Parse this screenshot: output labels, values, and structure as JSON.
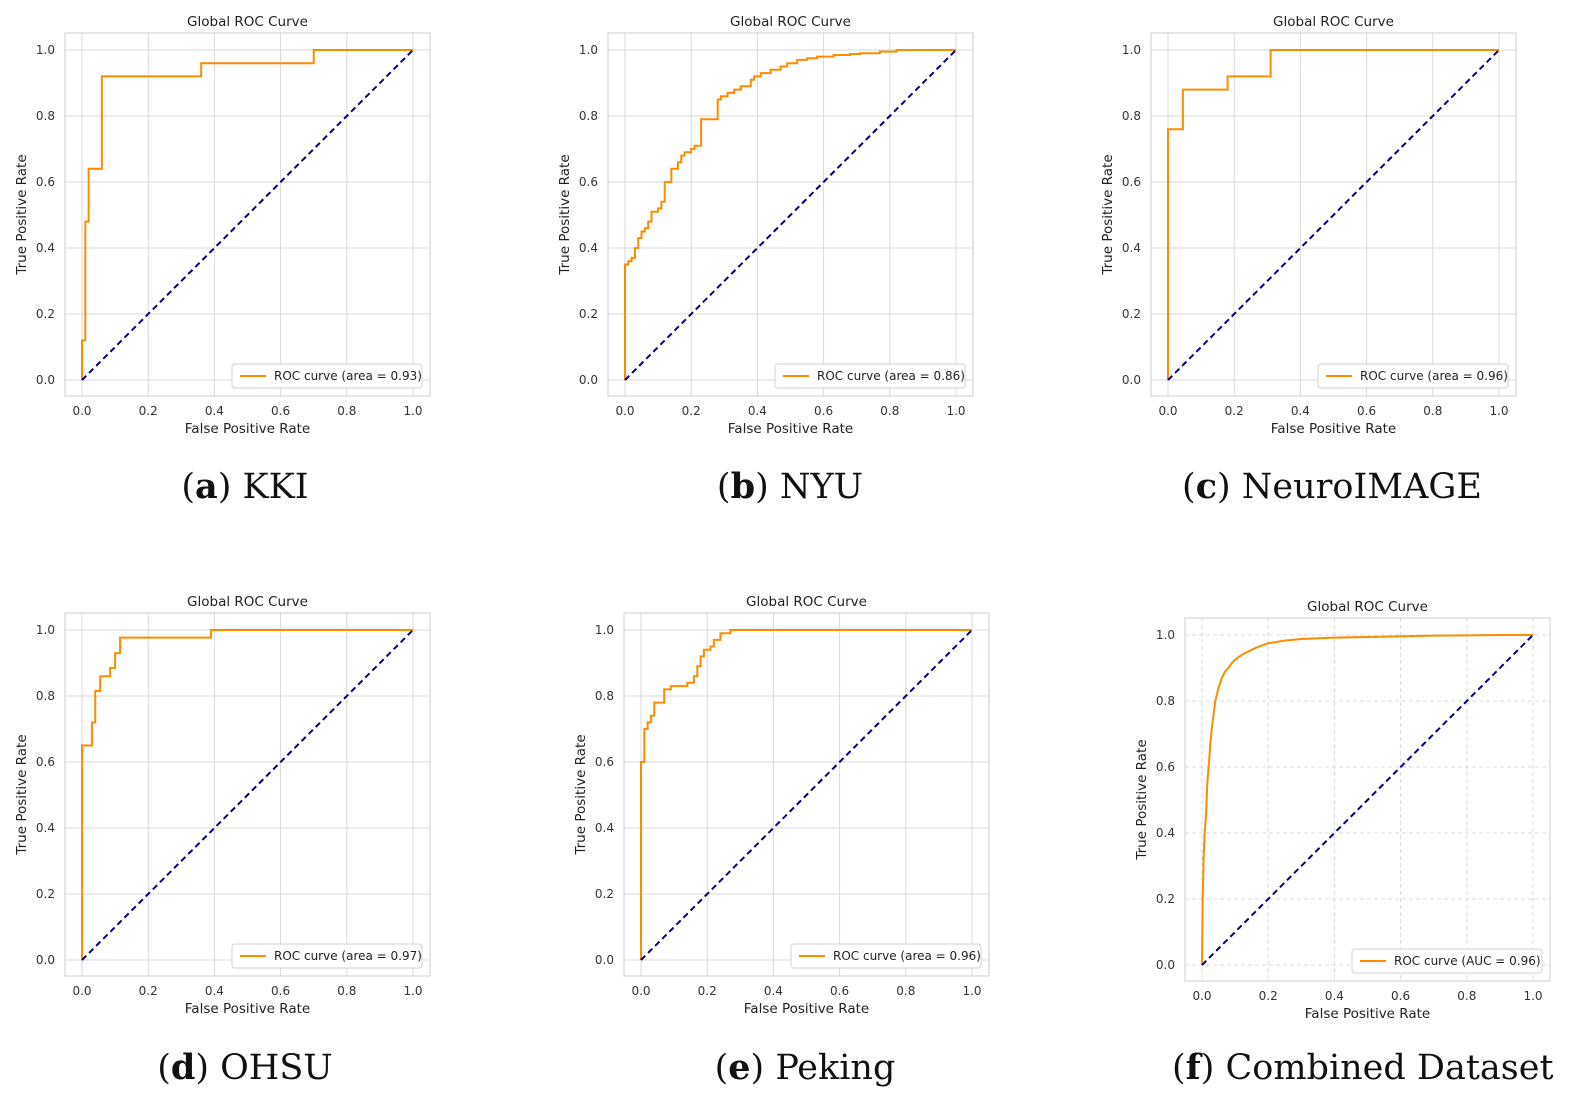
{
  "colors": {
    "roc": "#ff8c00",
    "diagonal": "#000080",
    "grid": "#d9d9d9",
    "frame": "#cccccc"
  },
  "chart_data": [
    {
      "type": "line",
      "title": "Global ROC Curve",
      "xlabel": "False Positive Rate",
      "ylabel": "True Positive Rate",
      "xlim": [
        0,
        1
      ],
      "ylim": [
        0,
        1
      ],
      "xticks": [
        "0.0",
        "0.2",
        "0.4",
        "0.6",
        "0.8",
        "1.0"
      ],
      "yticks": [
        "0.0",
        "0.2",
        "0.4",
        "0.6",
        "0.8",
        "1.0"
      ],
      "grid": "solid",
      "legend_position": "lower-right",
      "legend_label": "ROC curve (area = 0.93)",
      "caption_letter": "a",
      "caption_text": "KKI",
      "series": [
        {
          "name": "ROC curve (area = 0.93)",
          "style": "solid",
          "x": [
            0,
            0,
            0.01,
            0.01,
            0.02,
            0.02,
            0.03,
            0.03,
            0.06,
            0.06,
            0.36,
            0.36,
            0.7,
            0.7,
            1.0
          ],
          "y": [
            0,
            0.12,
            0.12,
            0.48,
            0.48,
            0.64,
            0.64,
            0.64,
            0.64,
            0.92,
            0.92,
            0.96,
            0.96,
            1.0,
            1.0
          ]
        },
        {
          "name": "",
          "style": "dashed",
          "x": [
            0,
            1
          ],
          "y": [
            0,
            1
          ]
        }
      ]
    },
    {
      "type": "line",
      "title": "Global ROC Curve",
      "xlabel": "False Positive Rate",
      "ylabel": "True Positive Rate",
      "xlim": [
        0,
        1
      ],
      "ylim": [
        0,
        1
      ],
      "xticks": [
        "0.0",
        "0.2",
        "0.4",
        "0.6",
        "0.8",
        "1.0"
      ],
      "yticks": [
        "0.0",
        "0.2",
        "0.4",
        "0.6",
        "0.8",
        "1.0"
      ],
      "grid": "solid",
      "legend_position": "lower-right",
      "legend_label": "ROC curve (area = 0.86)",
      "caption_letter": "b",
      "caption_text": "NYU",
      "series": [
        {
          "name": "ROC curve (area = 0.86)",
          "style": "solid",
          "x": [
            0,
            0,
            0.01,
            0.01,
            0.02,
            0.02,
            0.03,
            0.03,
            0.04,
            0.04,
            0.05,
            0.05,
            0.06,
            0.06,
            0.07,
            0.07,
            0.08,
            0.08,
            0.1,
            0.1,
            0.11,
            0.11,
            0.12,
            0.12,
            0.14,
            0.14,
            0.16,
            0.16,
            0.17,
            0.17,
            0.18,
            0.18,
            0.2,
            0.2,
            0.21,
            0.21,
            0.23,
            0.23,
            0.28,
            0.28,
            0.29,
            0.29,
            0.31,
            0.31,
            0.33,
            0.33,
            0.35,
            0.35,
            0.38,
            0.38,
            0.39,
            0.39,
            0.41,
            0.41,
            0.44,
            0.44,
            0.47,
            0.47,
            0.49,
            0.49,
            0.52,
            0.52,
            0.55,
            0.55,
            0.58,
            0.58,
            0.63,
            0.63,
            0.68,
            0.68,
            0.71,
            0.71,
            0.77,
            0.77,
            0.82,
            0.82,
            1.0
          ],
          "y": [
            0,
            0.35,
            0.35,
            0.36,
            0.36,
            0.37,
            0.37,
            0.4,
            0.4,
            0.43,
            0.43,
            0.45,
            0.45,
            0.46,
            0.46,
            0.48,
            0.48,
            0.51,
            0.51,
            0.52,
            0.52,
            0.54,
            0.54,
            0.6,
            0.6,
            0.64,
            0.64,
            0.66,
            0.66,
            0.68,
            0.68,
            0.69,
            0.69,
            0.7,
            0.7,
            0.71,
            0.71,
            0.79,
            0.79,
            0.85,
            0.85,
            0.86,
            0.86,
            0.87,
            0.87,
            0.88,
            0.88,
            0.89,
            0.89,
            0.91,
            0.91,
            0.92,
            0.92,
            0.93,
            0.93,
            0.94,
            0.94,
            0.95,
            0.95,
            0.96,
            0.96,
            0.97,
            0.97,
            0.975,
            0.975,
            0.98,
            0.98,
            0.985,
            0.985,
            0.988,
            0.988,
            0.99,
            0.99,
            0.995,
            0.995,
            1.0,
            1.0
          ]
        },
        {
          "name": "",
          "style": "dashed",
          "x": [
            0,
            1
          ],
          "y": [
            0,
            1
          ]
        }
      ]
    },
    {
      "type": "line",
      "title": "Global ROC Curve",
      "xlabel": "False Positive Rate",
      "ylabel": "True Positive Rate",
      "xlim": [
        0,
        1
      ],
      "ylim": [
        0,
        1
      ],
      "xticks": [
        "0.0",
        "0.2",
        "0.4",
        "0.6",
        "0.8",
        "1.0"
      ],
      "yticks": [
        "0.0",
        "0.2",
        "0.4",
        "0.6",
        "0.8",
        "1.0"
      ],
      "grid": "solid",
      "legend_position": "lower-right",
      "legend_label": "ROC curve (area = 0.96)",
      "caption_letter": "c",
      "caption_text": "NeuroIMAGE",
      "series": [
        {
          "name": "ROC curve (area = 0.96)",
          "style": "solid",
          "x": [
            0,
            0,
            0.045,
            0.045,
            0.18,
            0.18,
            0.31,
            0.31,
            1.0
          ],
          "y": [
            0,
            0.76,
            0.76,
            0.88,
            0.88,
            0.92,
            0.92,
            1.0,
            1.0
          ]
        },
        {
          "name": "",
          "style": "dashed",
          "x": [
            0,
            1
          ],
          "y": [
            0,
            1
          ]
        }
      ]
    },
    {
      "type": "line",
      "title": "Global ROC Curve",
      "xlabel": "False Positive Rate",
      "ylabel": "True Positive Rate",
      "xlim": [
        0,
        1
      ],
      "ylim": [
        0,
        1
      ],
      "xticks": [
        "0.0",
        "0.2",
        "0.4",
        "0.6",
        "0.8",
        "1.0"
      ],
      "yticks": [
        "0.0",
        "0.2",
        "0.4",
        "0.6",
        "0.8",
        "1.0"
      ],
      "grid": "solid",
      "legend_position": "lower-right",
      "legend_label": "ROC curve (area = 0.97)",
      "caption_letter": "d",
      "caption_text": "OHSU",
      "series": [
        {
          "name": "ROC curve (area = 0.97)",
          "style": "solid",
          "x": [
            0,
            0,
            0.03,
            0.03,
            0.04,
            0.04,
            0.055,
            0.055,
            0.085,
            0.085,
            0.1,
            0.1,
            0.115,
            0.115,
            0.39,
            0.39,
            1.0
          ],
          "y": [
            0,
            0.65,
            0.65,
            0.72,
            0.72,
            0.815,
            0.815,
            0.86,
            0.86,
            0.885,
            0.885,
            0.93,
            0.93,
            0.977,
            0.977,
            1.0,
            1.0
          ]
        },
        {
          "name": "",
          "style": "dashed",
          "x": [
            0,
            1
          ],
          "y": [
            0,
            1
          ]
        }
      ]
    },
    {
      "type": "line",
      "title": "Global ROC Curve",
      "xlabel": "False Positive Rate",
      "ylabel": "True Positive Rate",
      "xlim": [
        0,
        1
      ],
      "ylim": [
        0,
        1
      ],
      "xticks": [
        "0.0",
        "0.2",
        "0.4",
        "0.6",
        "0.8",
        "1.0"
      ],
      "yticks": [
        "0.0",
        "0.2",
        "0.4",
        "0.6",
        "0.8",
        "1.0"
      ],
      "grid": "solid",
      "legend_position": "lower-right",
      "legend_label": "ROC curve (area = 0.96)",
      "caption_letter": "e",
      "caption_text": "Peking",
      "series": [
        {
          "name": "ROC curve (area = 0.96)",
          "style": "solid",
          "x": [
            0,
            0,
            0.01,
            0.01,
            0.02,
            0.02,
            0.03,
            0.03,
            0.04,
            0.04,
            0.07,
            0.07,
            0.09,
            0.09,
            0.14,
            0.14,
            0.16,
            0.16,
            0.17,
            0.17,
            0.18,
            0.18,
            0.19,
            0.19,
            0.21,
            0.21,
            0.22,
            0.22,
            0.24,
            0.24,
            0.27,
            0.27,
            1.0
          ],
          "y": [
            0,
            0.6,
            0.6,
            0.7,
            0.7,
            0.72,
            0.72,
            0.74,
            0.74,
            0.78,
            0.78,
            0.82,
            0.82,
            0.83,
            0.83,
            0.84,
            0.84,
            0.86,
            0.86,
            0.89,
            0.89,
            0.92,
            0.92,
            0.94,
            0.94,
            0.95,
            0.95,
            0.97,
            0.97,
            0.99,
            0.99,
            1.0,
            1.0
          ]
        },
        {
          "name": "",
          "style": "dashed",
          "x": [
            0,
            1
          ],
          "y": [
            0,
            1
          ]
        }
      ]
    },
    {
      "type": "line",
      "title": "Global ROC Curve",
      "xlabel": "False Positive Rate",
      "ylabel": "True Positive Rate",
      "xlim": [
        0,
        1
      ],
      "ylim": [
        0,
        1
      ],
      "xticks": [
        "0.0",
        "0.2",
        "0.4",
        "0.6",
        "0.8",
        "1.0"
      ],
      "yticks": [
        "0.0",
        "0.2",
        "0.4",
        "0.6",
        "0.8",
        "1.0"
      ],
      "grid": "dashed",
      "legend_position": "lower-right",
      "legend_label": "ROC curve (AUC = 0.96)",
      "caption_letter": "f",
      "caption_text": "Combined Dataset",
      "series": [
        {
          "name": "ROC curve (AUC = 0.96)",
          "style": "solid",
          "x": [
            0,
            0.002,
            0.005,
            0.008,
            0.012,
            0.016,
            0.02,
            0.025,
            0.03,
            0.035,
            0.04,
            0.05,
            0.06,
            0.07,
            0.08,
            0.09,
            0.1,
            0.12,
            0.14,
            0.16,
            0.18,
            0.2,
            0.25,
            0.3,
            0.4,
            0.5,
            0.6,
            0.7,
            0.8,
            0.9,
            1.0
          ],
          "y": [
            0,
            0.2,
            0.33,
            0.4,
            0.45,
            0.55,
            0.6,
            0.67,
            0.72,
            0.76,
            0.8,
            0.84,
            0.87,
            0.89,
            0.9,
            0.915,
            0.925,
            0.94,
            0.95,
            0.96,
            0.968,
            0.975,
            0.983,
            0.988,
            0.992,
            0.994,
            0.996,
            0.998,
            0.999,
            1.0,
            1.0
          ]
        },
        {
          "name": "",
          "style": "dashed",
          "x": [
            0,
            1
          ],
          "y": [
            0,
            1
          ]
        }
      ]
    }
  ]
}
